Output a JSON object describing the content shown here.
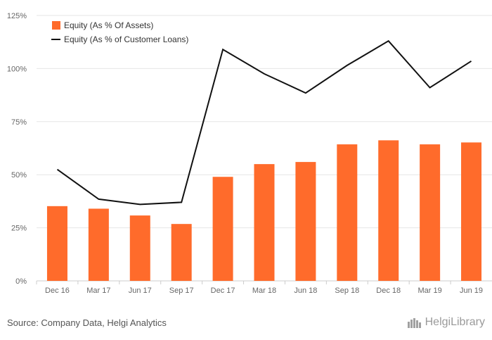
{
  "chart_data": {
    "type": "bar+line",
    "categories": [
      "Dec 16",
      "Mar 17",
      "Jun 17",
      "Sep 17",
      "Dec 17",
      "Mar 18",
      "Jun 18",
      "Sep 18",
      "Dec 18",
      "Mar 19",
      "Jun 19"
    ],
    "series": [
      {
        "name": "Equity (As % Of Assets)",
        "type": "bar",
        "color": "#ff6b2b",
        "values": [
          35.2,
          34.0,
          30.8,
          26.8,
          49.0,
          55.0,
          56.0,
          64.3,
          66.2,
          64.3,
          65.2
        ]
      },
      {
        "name": "Equity (As % of Customer Loans)",
        "type": "line",
        "color": "#111111",
        "values": [
          52.5,
          38.5,
          36.0,
          37.0,
          109.0,
          97.5,
          88.5,
          101.5,
          113.0,
          91.0,
          103.5
        ]
      }
    ],
    "y_ticks": [
      "0%",
      "25%",
      "50%",
      "75%",
      "100%",
      "125%"
    ],
    "ylim": [
      0,
      125
    ],
    "grid": true,
    "legend_position": "top-left"
  },
  "footer": {
    "source": "Source: Company Data, Helgi Analytics",
    "brand": "HelgiLibrary"
  }
}
